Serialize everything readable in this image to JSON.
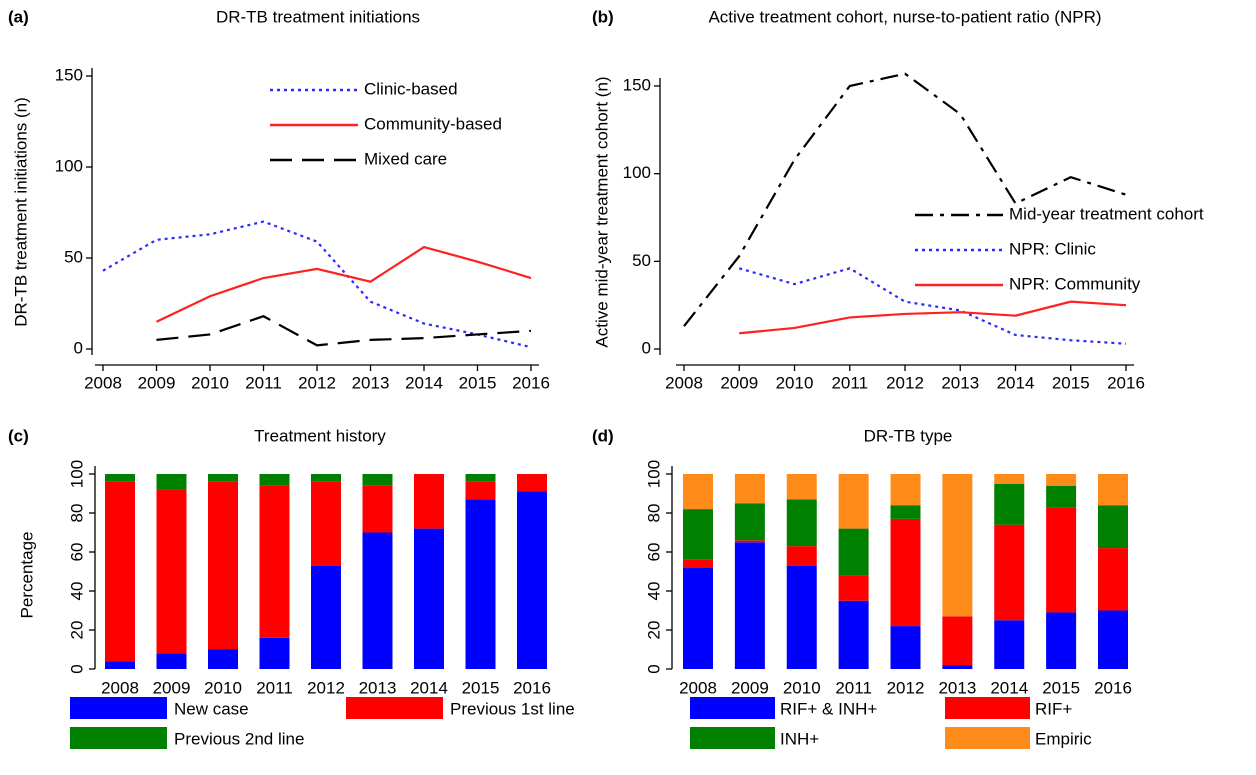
{
  "chart_data": [
    {
      "type": "line",
      "label": "(a)",
      "title": "DR-TB treatment initiations",
      "y_label": "DR-TB treatment initiations (n)",
      "x": [
        2008,
        2009,
        2010,
        2011,
        2012,
        2013,
        2014,
        2015,
        2016
      ],
      "xlim": [
        2008,
        2016
      ],
      "xticks": [
        2008,
        2009,
        2010,
        2011,
        2012,
        2013,
        2014,
        2015,
        2016
      ],
      "ylim": [
        0,
        150
      ],
      "yticks": [
        0,
        50,
        100,
        150
      ],
      "legend": "inside",
      "series": [
        {
          "name": "Clinic-based",
          "color": "#2a2aff",
          "style": "dotted",
          "values": [
            43,
            60,
            63,
            70,
            59,
            26,
            14,
            8,
            1
          ]
        },
        {
          "name": "Community-based",
          "color": "#ff2020",
          "style": "solid",
          "values": [
            null,
            15,
            29,
            39,
            44,
            37,
            56,
            48,
            39
          ]
        },
        {
          "name": "Mixed care",
          "color": "#000000",
          "style": "dashed",
          "values": [
            null,
            5,
            8,
            18,
            2,
            5,
            6,
            8,
            10
          ]
        }
      ]
    },
    {
      "type": "line",
      "label": "(b)",
      "title": "Active treatment cohort, nurse-to-patient ratio (NPR)",
      "y_label": "Active mid-year treatment cohort (n)",
      "x": [
        2008,
        2009,
        2010,
        2011,
        2012,
        2013,
        2014,
        2015,
        2016
      ],
      "xlim": [
        2008,
        2016
      ],
      "xticks": [
        2008,
        2009,
        2010,
        2011,
        2012,
        2013,
        2014,
        2015,
        2016
      ],
      "ylim": [
        0,
        150
      ],
      "yticks": [
        0,
        50,
        100,
        150
      ],
      "legend": "inside",
      "series": [
        {
          "name": "Mid-year treatment cohort",
          "color": "#000000",
          "style": "dashdot",
          "values": [
            13,
            53,
            108,
            150,
            157,
            134,
            83,
            98,
            88
          ]
        },
        {
          "name": "NPR: Clinic",
          "color": "#2a2aff",
          "style": "dotted",
          "values": [
            null,
            46,
            37,
            46,
            27,
            22,
            8,
            5,
            3
          ]
        },
        {
          "name": "NPR: Community",
          "color": "#ff2020",
          "style": "solid",
          "values": [
            null,
            9,
            12,
            18,
            20,
            21,
            19,
            27,
            25
          ]
        }
      ]
    },
    {
      "type": "bar",
      "stacked": true,
      "label": "(c)",
      "title": "Treatment history",
      "y_label": "Percentage",
      "categories": [
        "2008",
        "2009",
        "2010",
        "2011",
        "2012",
        "2013",
        "2014",
        "2015",
        "2016"
      ],
      "ylim": [
        0,
        100
      ],
      "yticks": [
        0,
        20,
        40,
        60,
        80,
        100
      ],
      "legend": "bottom",
      "series": [
        {
          "name": "New case",
          "color": "#0000ff",
          "values": [
            4,
            8,
            10,
            16,
            53,
            70,
            72,
            87,
            91
          ]
        },
        {
          "name": "Previous 1st line",
          "color": "#ff0000",
          "values": [
            92,
            84,
            86,
            78,
            43,
            24,
            28,
            9,
            9
          ]
        },
        {
          "name": "Previous 2nd line",
          "color": "#008000",
          "values": [
            4,
            8,
            4,
            6,
            4,
            6,
            0,
            4,
            0
          ]
        }
      ]
    },
    {
      "type": "bar",
      "stacked": true,
      "label": "(d)",
      "title": "DR-TB type",
      "categories": [
        "2008",
        "2009",
        "2010",
        "2011",
        "2012",
        "2013",
        "2014",
        "2015",
        "2016"
      ],
      "ylim": [
        0,
        100
      ],
      "yticks": [
        0,
        20,
        40,
        60,
        80,
        100
      ],
      "legend": "bottom",
      "series": [
        {
          "name": "RIF+ & INH+",
          "color": "#0000ff",
          "values": [
            52,
            65,
            53,
            35,
            22,
            2,
            25,
            29,
            30
          ]
        },
        {
          "name": "RIF+",
          "color": "#ff0000",
          "values": [
            4,
            1,
            10,
            13,
            55,
            25,
            49,
            54,
            32
          ]
        },
        {
          "name": "INH+",
          "color": "#008000",
          "values": [
            26,
            19,
            24,
            24,
            7,
            0,
            21,
            11,
            22
          ]
        },
        {
          "name": "Empiric",
          "color": "#ff8c1a",
          "values": [
            18,
            15,
            13,
            28,
            16,
            73,
            5,
            6,
            16
          ]
        }
      ]
    }
  ]
}
